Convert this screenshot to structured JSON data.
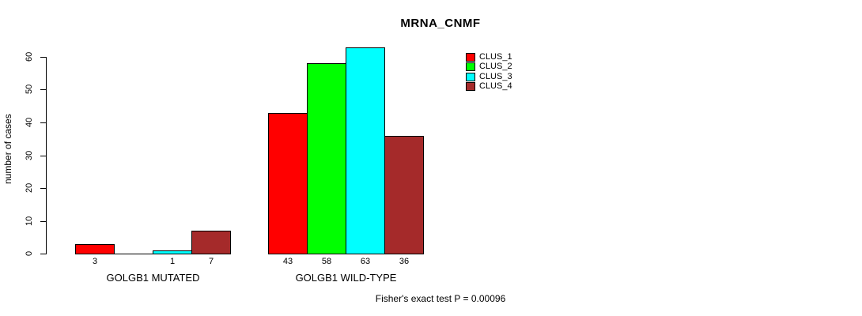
{
  "chart_data": {
    "type": "bar",
    "title": "MRNA_CNMF",
    "ylabel": "number of cases",
    "xlabel": "",
    "categories": [
      "GOLGB1 MUTATED",
      "GOLGB1 WILD-TYPE"
    ],
    "series": [
      {
        "name": "CLUS_1",
        "color": "#ff0000",
        "values": [
          3,
          43
        ]
      },
      {
        "name": "CLUS_2",
        "color": "#00ff00",
        "values": [
          0,
          58
        ]
      },
      {
        "name": "CLUS_3",
        "color": "#00ffff",
        "values": [
          1,
          63
        ]
      },
      {
        "name": "CLUS_4",
        "color": "#a52a2a",
        "values": [
          7,
          36
        ]
      }
    ],
    "bar_value_labels": [
      [
        "3",
        "",
        "1",
        "7"
      ],
      [
        "43",
        "58",
        "63",
        "36"
      ]
    ],
    "yticks": [
      "0",
      "10",
      "20",
      "30",
      "40",
      "50",
      "60"
    ],
    "ylim": [
      0,
      63
    ],
    "grid": false,
    "legend": {
      "position": "top-right",
      "entries": [
        "CLUS_1",
        "CLUS_2",
        "CLUS_3",
        "CLUS_4"
      ]
    },
    "annotation": "Fisher's exact test P = 0.00096"
  }
}
